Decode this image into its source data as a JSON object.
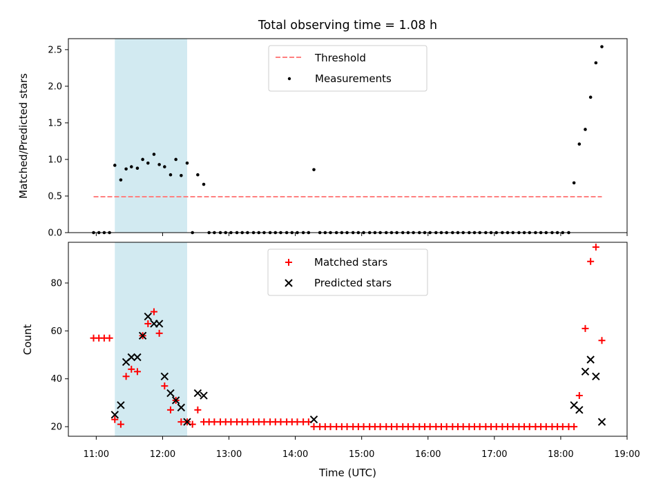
{
  "chart_data": {
    "type": "scatter",
    "title": "Total observing time = 1.08 h",
    "xlabel": "Time (UTC)",
    "xlim": [
      10.58,
      19.0
    ],
    "xticks": [
      "11:00",
      "12:00",
      "13:00",
      "14:00",
      "15:00",
      "16:00",
      "17:00",
      "18:00",
      "19:00"
    ],
    "highlight_span": [
      11.28,
      12.37
    ],
    "colors": {
      "threshold": "#ff7f7f",
      "matched": "#ff0000",
      "predicted": "#000000",
      "span": "#add8e6"
    },
    "top": {
      "ylabel": "Matched/Predicted stars",
      "ylim": [
        0,
        2.65
      ],
      "yticks": [
        "0.0",
        "0.5",
        "1.0",
        "1.5",
        "2.0",
        "2.5"
      ],
      "legend_position": "upper center",
      "legend": [
        "Threshold",
        "Measurements"
      ],
      "threshold": {
        "value": 0.49,
        "x_range": [
          10.96,
          18.62
        ]
      },
      "measurements": {
        "x": [
          10.96,
          11.04,
          11.12,
          11.2,
          11.28,
          11.37,
          11.45,
          11.53,
          11.62,
          11.7,
          11.78,
          11.87,
          11.95,
          12.03,
          12.12,
          12.2,
          12.28,
          12.37,
          12.45,
          12.53,
          12.62,
          12.7,
          12.78,
          12.87,
          12.95,
          13.03,
          13.12,
          13.2,
          13.28,
          13.37,
          13.45,
          13.53,
          13.62,
          13.7,
          13.78,
          13.87,
          13.95,
          14.03,
          14.12,
          14.2,
          14.28,
          14.37,
          14.45,
          14.53,
          14.62,
          14.7,
          14.78,
          14.87,
          14.95,
          15.03,
          15.12,
          15.2,
          15.28,
          15.37,
          15.45,
          15.53,
          15.62,
          15.7,
          15.78,
          15.87,
          15.95,
          16.03,
          16.12,
          16.2,
          16.28,
          16.37,
          16.45,
          16.53,
          16.62,
          16.7,
          16.78,
          16.87,
          16.95,
          17.03,
          17.12,
          17.2,
          17.28,
          17.37,
          17.45,
          17.53,
          17.62,
          17.7,
          17.78,
          17.87,
          17.95,
          18.03,
          18.12,
          18.2,
          18.28,
          18.37,
          18.45,
          18.53,
          18.62
        ],
        "y": [
          0,
          0,
          0,
          0,
          0.92,
          0.72,
          0.87,
          0.9,
          0.88,
          1.0,
          0.95,
          1.07,
          0.93,
          0.9,
          0.79,
          1.0,
          0.78,
          0.95,
          0,
          0.79,
          0.66,
          0,
          0,
          0,
          0,
          0,
          0,
          0,
          0,
          0,
          0,
          0,
          0,
          0,
          0,
          0,
          0,
          0,
          0,
          0,
          0.86,
          0,
          0,
          0,
          0,
          0,
          0,
          0,
          0,
          0,
          0,
          0,
          0,
          0,
          0,
          0,
          0,
          0,
          0,
          0,
          0,
          0,
          0,
          0,
          0,
          0,
          0,
          0,
          0,
          0,
          0,
          0,
          0,
          0,
          0,
          0,
          0,
          0,
          0,
          0,
          0,
          0,
          0,
          0,
          0,
          0,
          0,
          0.68,
          1.21,
          1.41,
          1.85,
          2.32,
          2.54
        ]
      }
    },
    "bottom": {
      "ylabel": "Count",
      "ylim": [
        16,
        97
      ],
      "yticks": [
        "20",
        "40",
        "60",
        "80"
      ],
      "legend_position": "upper center",
      "legend": [
        "Matched stars",
        "Predicted stars"
      ],
      "matched": {
        "x": [
          10.96,
          11.04,
          11.12,
          11.2,
          11.28,
          11.37,
          11.45,
          11.53,
          11.62,
          11.7,
          11.78,
          11.87,
          11.95,
          12.03,
          12.12,
          12.2,
          12.28,
          12.37,
          12.45,
          12.53,
          12.62,
          12.7,
          12.78,
          12.87,
          12.95,
          13.03,
          13.12,
          13.2,
          13.28,
          13.37,
          13.45,
          13.53,
          13.62,
          13.7,
          13.78,
          13.87,
          13.95,
          14.03,
          14.12,
          14.2,
          14.28,
          14.37,
          14.45,
          14.53,
          14.62,
          14.7,
          14.78,
          14.87,
          14.95,
          15.03,
          15.12,
          15.2,
          15.28,
          15.37,
          15.45,
          15.53,
          15.62,
          15.7,
          15.78,
          15.87,
          15.95,
          16.03,
          16.12,
          16.2,
          16.28,
          16.37,
          16.45,
          16.53,
          16.62,
          16.7,
          16.78,
          16.87,
          16.95,
          17.03,
          17.12,
          17.2,
          17.28,
          17.37,
          17.45,
          17.53,
          17.62,
          17.7,
          17.78,
          17.87,
          17.95,
          18.03,
          18.12,
          18.2,
          18.28,
          18.37,
          18.45,
          18.53,
          18.62
        ],
        "y": [
          57,
          57,
          57,
          57,
          23,
          21,
          41,
          44,
          43,
          58,
          63,
          68,
          59,
          37,
          27,
          31,
          22,
          22,
          21,
          27,
          22,
          22,
          22,
          22,
          22,
          22,
          22,
          22,
          22,
          22,
          22,
          22,
          22,
          22,
          22,
          22,
          22,
          22,
          22,
          22,
          20,
          20,
          20,
          20,
          20,
          20,
          20,
          20,
          20,
          20,
          20,
          20,
          20,
          20,
          20,
          20,
          20,
          20,
          20,
          20,
          20,
          20,
          20,
          20,
          20,
          20,
          20,
          20,
          20,
          20,
          20,
          20,
          20,
          20,
          20,
          20,
          20,
          20,
          20,
          20,
          20,
          20,
          20,
          20,
          20,
          20,
          20,
          20,
          33,
          61,
          89,
          95,
          56
        ]
      },
      "predicted": {
        "x": [
          11.28,
          11.37,
          11.45,
          11.53,
          11.62,
          11.7,
          11.78,
          11.87,
          11.95,
          12.03,
          12.12,
          12.2,
          12.28,
          12.37,
          12.53,
          12.62,
          14.28,
          18.2,
          18.28,
          18.37,
          18.45,
          18.53,
          18.62
        ],
        "y": [
          25,
          29,
          47,
          49,
          49,
          58,
          66,
          63,
          63,
          41,
          34,
          31,
          28,
          22,
          34,
          33,
          23,
          29,
          27,
          43,
          48,
          41,
          22
        ]
      }
    }
  }
}
